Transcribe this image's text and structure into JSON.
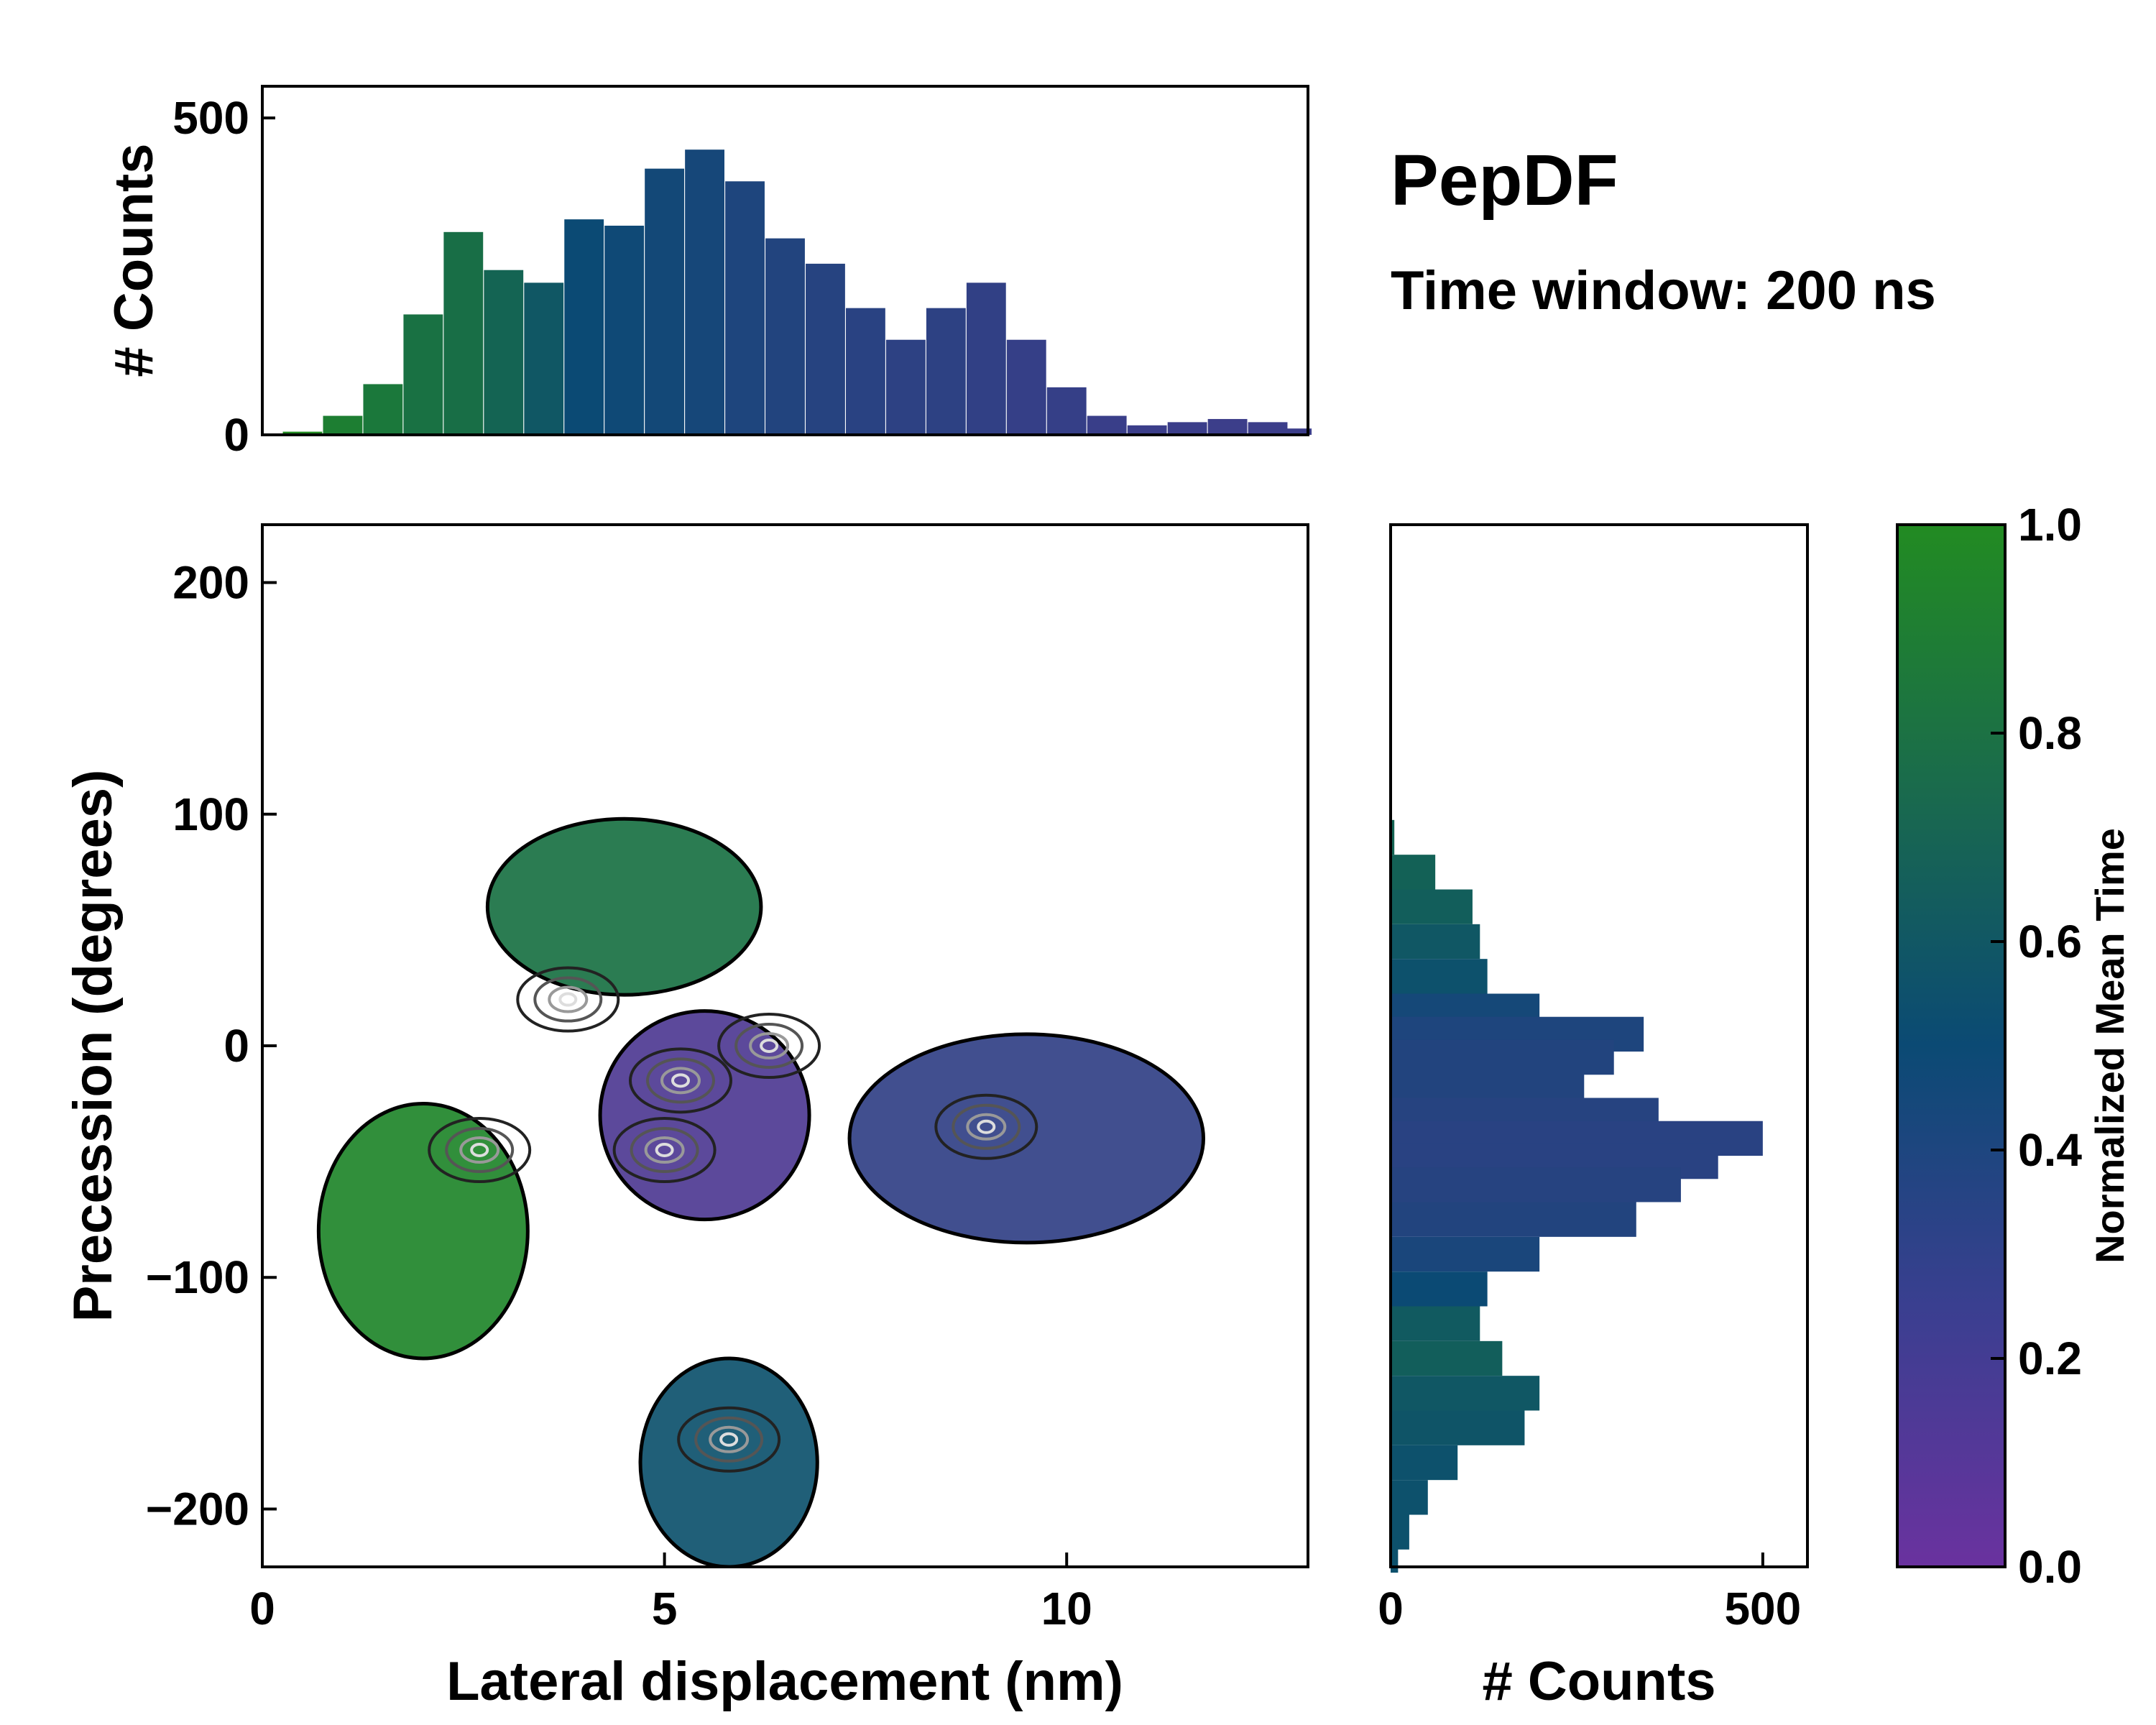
{
  "title": "PepDF",
  "subtitle": "Time window: 200 ns",
  "colors": {
    "low": "#6a329f",
    "mid": "#0b4a74",
    "high": "#228b22",
    "frame": "#000000"
  },
  "chart_data": [
    {
      "id": "top-histogram",
      "type": "bar",
      "ylabel": "# Counts",
      "xlim": [
        0,
        13
      ],
      "ylim": [
        0,
        550
      ],
      "yticks": [
        "0",
        "500"
      ],
      "ytick_values": [
        0,
        500
      ],
      "x": [
        0.5,
        1.0,
        1.5,
        2.0,
        2.5,
        3.0,
        3.5,
        4.0,
        4.5,
        5.0,
        5.5,
        6.0,
        6.5,
        7.0,
        7.5,
        8.0,
        8.5,
        9.0,
        9.5,
        10.0,
        10.5,
        11.0,
        11.5,
        12.0,
        12.5,
        12.8
      ],
      "values": [
        5,
        30,
        80,
        190,
        320,
        260,
        240,
        340,
        330,
        420,
        450,
        400,
        310,
        270,
        200,
        150,
        200,
        240,
        150,
        75,
        30,
        15,
        20,
        25,
        20,
        10
      ],
      "color_values": [
        1.0,
        0.9,
        0.85,
        0.8,
        0.78,
        0.7,
        0.6,
        0.5,
        0.48,
        0.46,
        0.44,
        0.4,
        0.38,
        0.36,
        0.34,
        0.32,
        0.32,
        0.3,
        0.28,
        0.28,
        0.26,
        0.25,
        0.25,
        0.24,
        0.24,
        0.24
      ]
    },
    {
      "id": "main-heatmap",
      "type": "heatmap",
      "xlabel": "Lateral displacement (nm)",
      "ylabel": "Precession (degrees)",
      "xlim": [
        0,
        13
      ],
      "ylim": [
        -225,
        225
      ],
      "xticks": [
        "0",
        "5",
        "10"
      ],
      "xtick_values": [
        0,
        5,
        10
      ],
      "yticks": [
        "200",
        "100",
        "0",
        "−100",
        "−200"
      ],
      "ytick_values": [
        200,
        100,
        0,
        -100,
        -200
      ],
      "regions": [
        {
          "label": "green-left",
          "x": 2.0,
          "y": -80,
          "color_value": 0.95
        },
        {
          "label": "green-top",
          "x": 4.5,
          "y": 60,
          "color_value": 0.8
        },
        {
          "label": "purple-center",
          "x": 5.5,
          "y": -30,
          "color_value": 0.15
        },
        {
          "label": "blue-right",
          "x": 9.5,
          "y": -40,
          "color_value": 0.3
        },
        {
          "label": "teal-bottom",
          "x": 5.8,
          "y": -180,
          "color_value": 0.55
        }
      ],
      "density_peaks": [
        {
          "x": 2.7,
          "y": -45
        },
        {
          "x": 3.8,
          "y": 20
        },
        {
          "x": 5.2,
          "y": -15
        },
        {
          "x": 5.0,
          "y": -45
        },
        {
          "x": 6.3,
          "y": 0
        },
        {
          "x": 9.0,
          "y": -35
        },
        {
          "x": 5.8,
          "y": -170
        }
      ]
    },
    {
      "id": "right-histogram",
      "type": "bar",
      "orientation": "horizontal",
      "xlabel": "# Counts",
      "xlim": [
        0,
        560
      ],
      "xticks": [
        "0",
        "500"
      ],
      "xtick_values": [
        0,
        500
      ],
      "y": [
        90,
        75,
        60,
        45,
        30,
        15,
        5,
        -5,
        -15,
        -30,
        -40,
        -50,
        -60,
        -75,
        -90,
        -105,
        -120,
        -135,
        -150,
        -165,
        -180,
        -195,
        -210,
        -220
      ],
      "values": [
        5,
        60,
        110,
        120,
        130,
        200,
        340,
        300,
        260,
        360,
        500,
        440,
        390,
        330,
        200,
        130,
        120,
        150,
        200,
        180,
        90,
        50,
        25,
        10
      ],
      "color_values": [
        0.7,
        0.68,
        0.65,
        0.6,
        0.55,
        0.45,
        0.4,
        0.38,
        0.38,
        0.36,
        0.34,
        0.34,
        0.36,
        0.38,
        0.42,
        0.5,
        0.62,
        0.65,
        0.6,
        0.58,
        0.55,
        0.55,
        0.55,
        0.55
      ]
    },
    {
      "id": "colorbar",
      "type": "colorbar",
      "label": "Normalized Mean Time",
      "range": [
        0.0,
        1.0
      ],
      "ticks": [
        "0.0",
        "0.2",
        "0.4",
        "0.6",
        "0.8",
        "1.0"
      ],
      "tick_values": [
        0.0,
        0.2,
        0.4,
        0.6,
        0.8,
        1.0
      ]
    }
  ]
}
